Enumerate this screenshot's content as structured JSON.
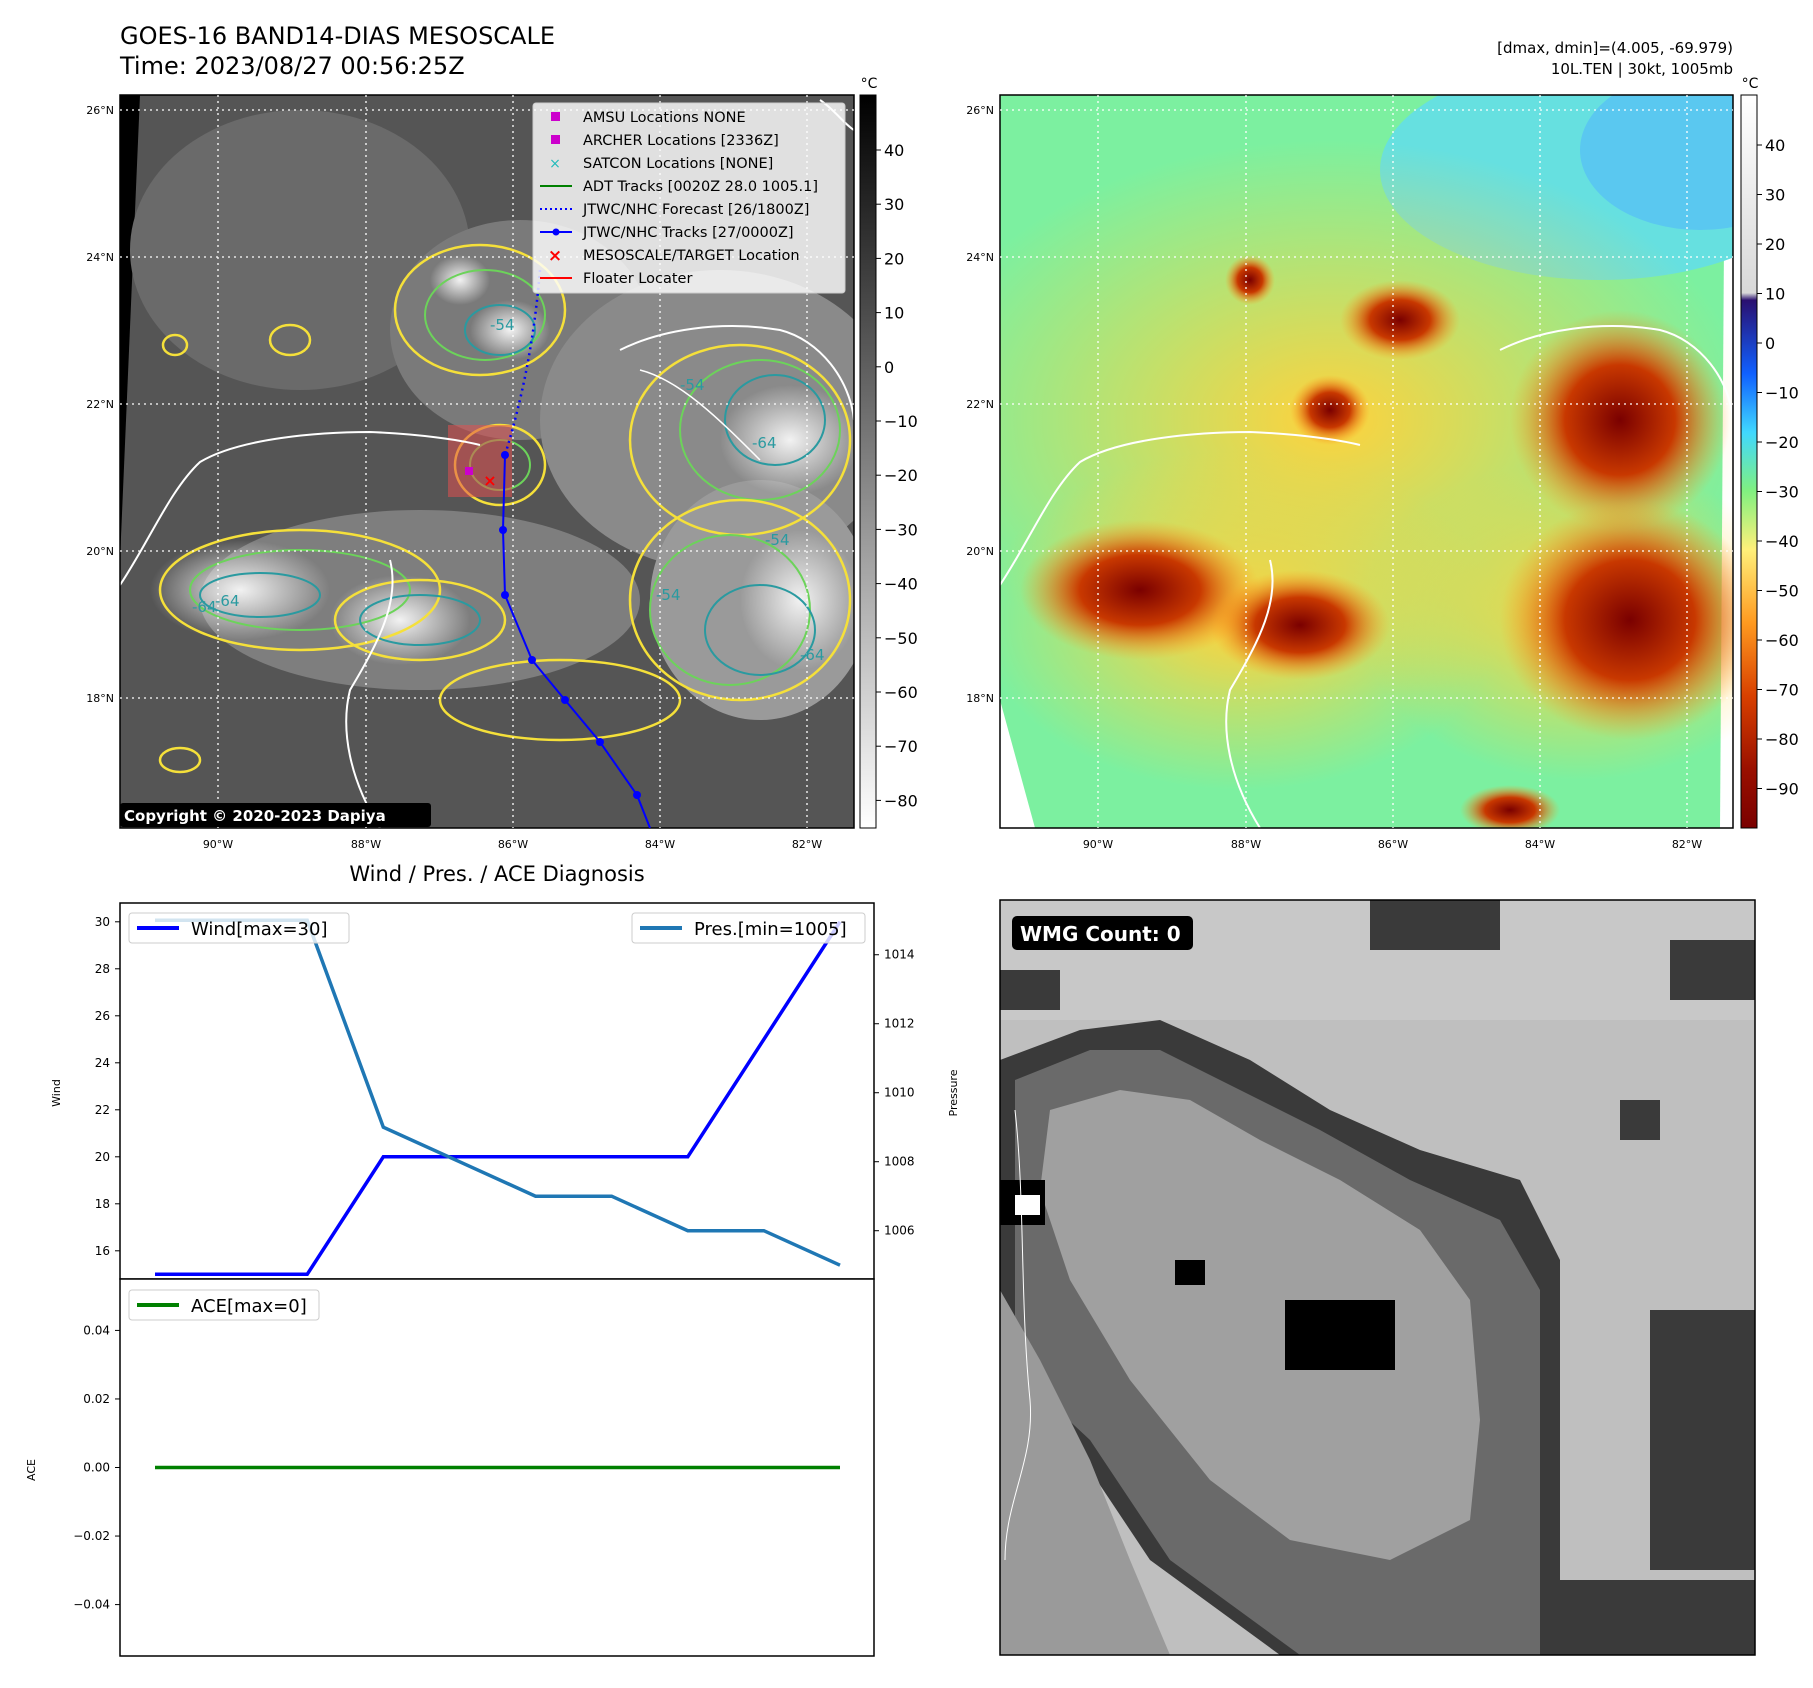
{
  "header": {
    "title": "GOES-16 BAND14-DIAS MESOSCALE",
    "time": "Time: 2023/08/27 00:56:25Z",
    "stats": "[dmax, dmin]=(4.005, -69.979)",
    "storm": "10L.TEN | 30kt, 1005mb"
  },
  "ir_map": {
    "colorbar_unit": "°C",
    "colorbar_ticks": [
      "40",
      "30",
      "20",
      "10",
      "0",
      "−10",
      "−20",
      "−30",
      "−40",
      "−50",
      "−60",
      "−70",
      "−80"
    ],
    "lat_labels": [
      "26°N",
      "24°N",
      "22°N",
      "20°N",
      "18°N"
    ],
    "lon_labels": [
      "90°W",
      "88°W",
      "86°W",
      "84°W",
      "82°W"
    ],
    "contour_labels": [
      "-64",
      "-64",
      "-54",
      "-54",
      "-54",
      "-64",
      "-64",
      "-54"
    ],
    "copyright": "Copyright © 2020-2023 Dapiya",
    "legend": [
      {
        "label": "AMSU Locations NONE",
        "color": "#cc00cc",
        "kind": "square"
      },
      {
        "label": "ARCHER Locations [2336Z]",
        "color": "#cc00cc",
        "kind": "square"
      },
      {
        "label": "SATCON Locations [NONE]",
        "color": "#22bbbb",
        "kind": "cross"
      },
      {
        "label": "ADT Tracks [0020Z 28.0 1005.1]",
        "color": "#008000",
        "kind": "line"
      },
      {
        "label": "JTWC/NHC Forecast [26/1800Z]",
        "color": "#0000ff",
        "kind": "dotted"
      },
      {
        "label": "JTWC/NHC Tracks [27/0000Z]",
        "color": "#0000ff",
        "kind": "linedot"
      },
      {
        "label": "MESOSCALE/TARGET Location",
        "color": "#ff0000",
        "kind": "x"
      },
      {
        "label": "Floater Locater",
        "color": "#ff0000",
        "kind": "line"
      }
    ]
  },
  "dias_map": {
    "colorbar_unit": "°C",
    "colorbar_ticks": [
      "40",
      "30",
      "20",
      "10",
      "0",
      "−10",
      "−20",
      "−30",
      "−40",
      "−50",
      "−60",
      "−70",
      "−80",
      "−90"
    ],
    "lat_labels": [
      "26°N",
      "24°N",
      "22°N",
      "20°N",
      "18°N"
    ],
    "lon_labels": [
      "90°W",
      "88°W",
      "86°W",
      "84°W",
      "82°W"
    ]
  },
  "diagnosis": {
    "title": "Wind / Pres. / ACE Diagnosis",
    "wind_ylabel": "Wind",
    "pressure_ylabel": "Pressure",
    "ace_ylabel": "ACE",
    "wind_legend": "Wind[max=30]",
    "pres_legend": "Pres.[min=1005]",
    "ace_legend": "ACE[max=0]"
  },
  "wmg": {
    "label": "WMG Count: 0"
  },
  "chart_data": [
    {
      "type": "line",
      "title": "Wind / Pres. / ACE Diagnosis",
      "ylabel": "Wind",
      "ylim": [
        14.8,
        30.8
      ],
      "yticks": [
        16,
        18,
        20,
        22,
        24,
        26,
        28,
        30
      ],
      "secondary_ylabel": "Pressure",
      "secondary_ylim": [
        1004.6,
        1015.5
      ],
      "secondary_yticks": [
        1006,
        1008,
        1010,
        1012,
        1014
      ],
      "x": [
        0,
        1,
        2,
        3,
        4,
        5,
        6,
        7,
        8,
        9
      ],
      "series": [
        {
          "name": "Wind[max=30]",
          "axis": "left",
          "color": "#0000ff",
          "values": [
            15,
            15,
            15,
            20,
            20,
            20,
            20,
            20,
            25,
            30
          ]
        },
        {
          "name": "Pres.[min=1005]",
          "axis": "right",
          "color": "#1f77b4",
          "values": [
            1015,
            1015,
            1015,
            1009,
            1008,
            1007,
            1007,
            1006,
            1006,
            1005
          ]
        }
      ]
    },
    {
      "type": "line",
      "ylabel": "ACE",
      "ylim": [
        -0.055,
        0.055
      ],
      "yticks": [
        -0.04,
        -0.02,
        0.0,
        0.02,
        0.04
      ],
      "ytick_labels": [
        "−0.04",
        "−0.02",
        "0.00",
        "0.02",
        "0.04"
      ],
      "x": [
        0,
        1,
        2,
        3,
        4,
        5,
        6,
        7,
        8,
        9
      ],
      "series": [
        {
          "name": "ACE[max=0]",
          "color": "#008000",
          "values": [
            0,
            0,
            0,
            0,
            0,
            0,
            0,
            0,
            0,
            0
          ]
        }
      ]
    }
  ]
}
